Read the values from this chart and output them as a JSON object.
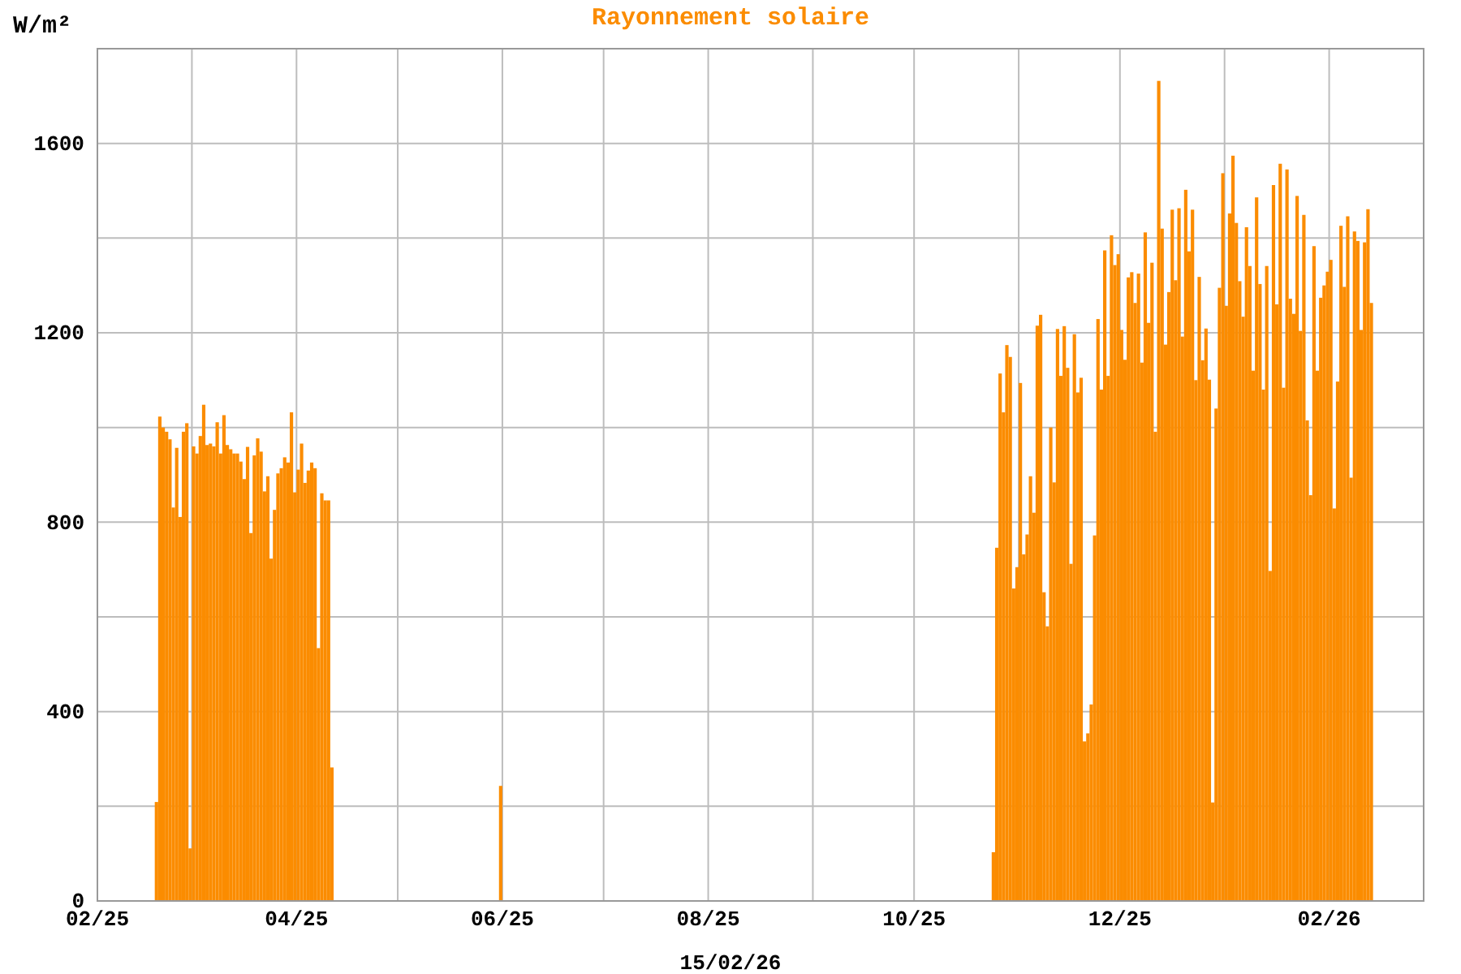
{
  "chart_data": {
    "type": "bar",
    "title": "Rayonnement solaire",
    "ylabel": "W/m²",
    "annotations": [
      "15/02/26"
    ],
    "xlim": [
      "2025-02-01",
      "2026-03-01"
    ],
    "xticks": [
      {
        "value": "2025-02-01",
        "label": "02/25"
      },
      {
        "value": "2025-03-01",
        "label": null
      },
      {
        "value": "2025-04-01",
        "label": "04/25"
      },
      {
        "value": "2025-05-01",
        "label": null
      },
      {
        "value": "2025-06-01",
        "label": "06/25"
      },
      {
        "value": "2025-07-01",
        "label": null
      },
      {
        "value": "2025-08-01",
        "label": "08/25"
      },
      {
        "value": "2025-09-01",
        "label": null
      },
      {
        "value": "2025-10-01",
        "label": "10/25"
      },
      {
        "value": "2025-11-01",
        "label": null
      },
      {
        "value": "2025-12-01",
        "label": "12/25"
      },
      {
        "value": "2026-01-01",
        "label": null
      },
      {
        "value": "2026-02-01",
        "label": "02/26"
      }
    ],
    "ylim": [
      0,
      1800
    ],
    "yticks": [
      0,
      {
        "value": 200,
        "label": null
      },
      400,
      {
        "value": 600,
        "label": null
      },
      800,
      {
        "value": 1000,
        "label": null
      },
      1200,
      {
        "value": 1400,
        "label": null
      },
      1600
    ],
    "grid": true,
    "series": [
      {
        "color": "#fb8c00",
        "x": [
          "2025-02-18",
          "2025-02-19",
          "2025-02-20",
          "2025-02-21",
          "2025-02-22",
          "2025-02-23",
          "2025-02-24",
          "2025-02-25",
          "2025-02-26",
          "2025-02-27",
          "2025-02-28",
          "2025-03-01",
          "2025-03-02",
          "2025-03-03",
          "2025-03-04",
          "2025-03-05",
          "2025-03-06",
          "2025-03-07",
          "2025-03-08",
          "2025-03-09",
          "2025-03-10",
          "2025-03-11",
          "2025-03-12",
          "2025-03-13",
          "2025-03-14",
          "2025-03-15",
          "2025-03-16",
          "2025-03-17",
          "2025-03-18",
          "2025-03-19",
          "2025-03-20",
          "2025-03-21",
          "2025-03-22",
          "2025-03-23",
          "2025-03-24",
          "2025-03-25",
          "2025-03-26",
          "2025-03-27",
          "2025-03-28",
          "2025-03-29",
          "2025-03-30",
          "2025-03-31",
          "2025-04-01",
          "2025-04-02",
          "2025-04-03",
          "2025-04-04",
          "2025-04-05",
          "2025-04-06",
          "2025-04-07",
          "2025-04-08",
          "2025-04-09",
          "2025-04-10",
          "2025-04-11"
        ],
        "values": [
          209,
          1023,
          1000,
          991,
          975,
          831,
          957,
          811,
          991,
          1009,
          111,
          960,
          945,
          982,
          1048,
          963,
          966,
          960,
          1011,
          945,
          1026,
          963,
          954,
          945,
          945,
          928,
          891,
          959,
          777,
          941,
          977,
          949,
          865,
          897,
          723,
          826,
          903,
          914,
          937,
          926,
          1032,
          863,
          911,
          966,
          883,
          909,
          926,
          914,
          534,
          861,
          846,
          846,
          282
        ]
      },
      {
        "color": "#fb8c00",
        "x": [
          "2025-05-31"
        ],
        "values": [
          243
        ]
      },
      {
        "color": "#fb8c00",
        "x": [
          "2025-10-24",
          "2025-10-25",
          "2025-10-26",
          "2025-10-27",
          "2025-10-28",
          "2025-10-29",
          "2025-10-30",
          "2025-10-31",
          "2025-11-01",
          "2025-11-02",
          "2025-11-03",
          "2025-11-04",
          "2025-11-05",
          "2025-11-06",
          "2025-11-07",
          "2025-11-08",
          "2025-11-09",
          "2025-11-10",
          "2025-11-11",
          "2025-11-12",
          "2025-11-13",
          "2025-11-14",
          "2025-11-15",
          "2025-11-16",
          "2025-11-17",
          "2025-11-18",
          "2025-11-19",
          "2025-11-20",
          "2025-11-21",
          "2025-11-22",
          "2025-11-23",
          "2025-11-24",
          "2025-11-25",
          "2025-11-26",
          "2025-11-27",
          "2025-11-28",
          "2025-11-29",
          "2025-11-30",
          "2025-12-01",
          "2025-12-02",
          "2025-12-03",
          "2025-12-04",
          "2025-12-05",
          "2025-12-06",
          "2025-12-07",
          "2025-12-08",
          "2025-12-09",
          "2025-12-10",
          "2025-12-11",
          "2025-12-12",
          "2025-12-13",
          "2025-12-14",
          "2025-12-15",
          "2025-12-16",
          "2025-12-17",
          "2025-12-18",
          "2025-12-19",
          "2025-12-20",
          "2025-12-21",
          "2025-12-22",
          "2025-12-23",
          "2025-12-24",
          "2025-12-25",
          "2025-12-26",
          "2025-12-27",
          "2025-12-28",
          "2025-12-29",
          "2025-12-30",
          "2025-12-31",
          "2026-01-01",
          "2026-01-02",
          "2026-01-03",
          "2026-01-04",
          "2026-01-05",
          "2026-01-06",
          "2026-01-07",
          "2026-01-08",
          "2026-01-09",
          "2026-01-10",
          "2026-01-11",
          "2026-01-12",
          "2026-01-13",
          "2026-01-14",
          "2026-01-15",
          "2026-01-16",
          "2026-01-17",
          "2026-01-18",
          "2026-01-19",
          "2026-01-20",
          "2026-01-21",
          "2026-01-22",
          "2026-01-23",
          "2026-01-24",
          "2026-01-25",
          "2026-01-26",
          "2026-01-27",
          "2026-01-28",
          "2026-01-29",
          "2026-01-30",
          "2026-01-31",
          "2026-02-01",
          "2026-02-02",
          "2026-02-03",
          "2026-02-04",
          "2026-02-05",
          "2026-02-06",
          "2026-02-07",
          "2026-02-08",
          "2026-02-09",
          "2026-02-10",
          "2026-02-11",
          "2026-02-12",
          "2026-02-13"
        ],
        "values": [
          103,
          746,
          1114,
          1032,
          1174,
          1149,
          660,
          705,
          1094,
          732,
          774,
          897,
          820,
          1215,
          1238,
          652,
          580,
          1000,
          884,
          1208,
          1109,
          1214,
          1126,
          712,
          1197,
          1074,
          1105,
          337,
          354,
          415,
          772,
          1229,
          1080,
          1374,
          1109,
          1406,
          1343,
          1366,
          1206,
          1143,
          1317,
          1328,
          1263,
          1325,
          1137,
          1412,
          1221,
          1348,
          991,
          1732,
          1420,
          1175,
          1286,
          1460,
          1311,
          1463,
          1192,
          1502,
          1372,
          1460,
          1100,
          1318,
          1142,
          1209,
          1101,
          208,
          1040,
          1295,
          1537,
          1257,
          1452,
          1574,
          1432,
          1309,
          1234,
          1423,
          1341,
          1120,
          1486,
          1303,
          1080,
          1341,
          697,
          1512,
          1260,
          1557,
          1084,
          1545,
          1272,
          1240,
          1489,
          1204,
          1449,
          1015,
          857,
          1383,
          1120,
          1274,
          1300,
          1329,
          1354,
          829,
          1097,
          1426,
          1297,
          1446,
          894,
          1414,
          1394,
          1206,
          1391,
          1461,
          1263
        ]
      }
    ]
  }
}
